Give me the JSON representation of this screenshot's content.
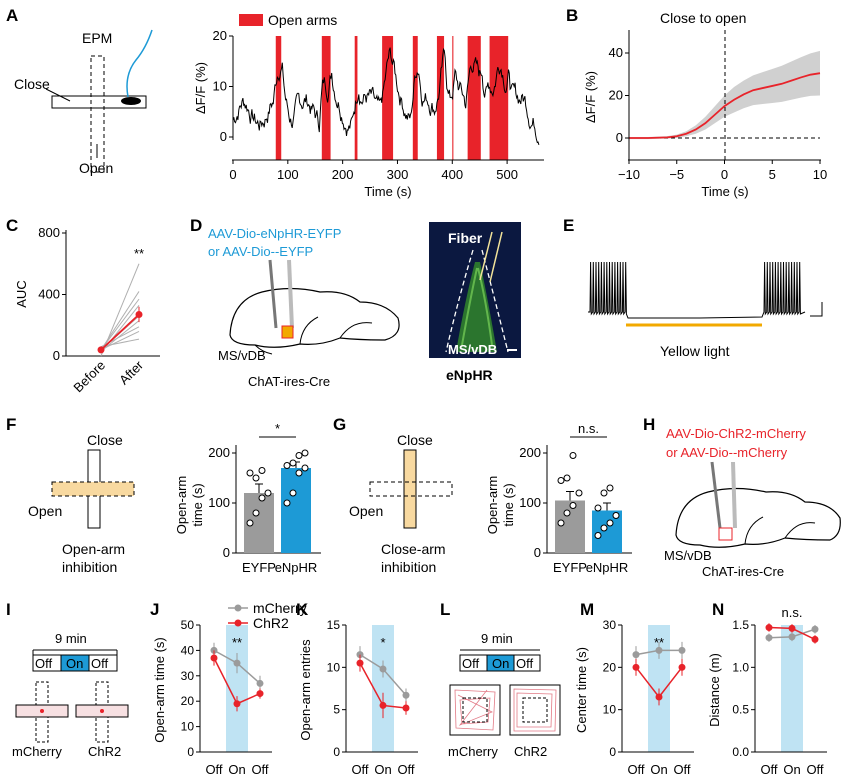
{
  "panels": {
    "A": "A",
    "B": "B",
    "C": "C",
    "D": "D",
    "E": "E",
    "F": "F",
    "G": "G",
    "H": "H",
    "I": "I",
    "J": "J",
    "K": "K",
    "L": "L",
    "M": "M",
    "N": "N"
  },
  "labels": {
    "epm": "EPM",
    "close": "Close",
    "open": "Open",
    "open_arms": "Open arms",
    "close_to_open": "Close to open",
    "virus_d1": "AAV-Dio-eNpHR-EYFP",
    "virus_d2": "or AAV-Dio--EYFP",
    "fiber": "Fiber",
    "msvdb": "MS/vDB",
    "chat_cre": "ChAT-ires-Cre",
    "enphr": "eNpHR",
    "yellow_light": "Yellow light",
    "open_arm_inhibition_1": "Open-arm",
    "open_arm_inhibition_2": "inhibition",
    "close_arm_inhibition_1": "Close-arm",
    "close_arm_inhibition_2": "inhibition",
    "virus_h1": "AAV-Dio-ChR2-mCherry",
    "virus_h2": "or AAV-Dio--mCherry",
    "nine_min": "9 min",
    "off": "Off",
    "on": "On",
    "mcherry": "mCherry",
    "chr2": "ChR2"
  },
  "colors": {
    "red": "#e8232a",
    "blue": "#1d9ad6",
    "gray": "#9b9b9b",
    "yellow": "#f2a900",
    "shade": "#bfe3f3",
    "lightyellow": "#f8d9a0"
  },
  "chart_data": [
    {
      "id": "A",
      "type": "line",
      "ylabel": "ΔF/F (%)",
      "xlabel": "Time (s)",
      "legend": "Open arms",
      "xlim": [
        0,
        560
      ],
      "ylim": [
        -5,
        20
      ],
      "xticks": [
        "0",
        "100",
        "200",
        "300",
        "400",
        "500"
      ],
      "yticks": [
        "0",
        "10",
        "20"
      ],
      "shaded_intervals": [
        [
          78,
          88
        ],
        [
          162,
          178
        ],
        [
          222,
          227
        ],
        [
          272,
          292
        ],
        [
          328,
          337
        ],
        [
          372,
          385
        ],
        [
          400,
          402
        ],
        [
          428,
          452
        ],
        [
          468,
          502
        ]
      ]
    },
    {
      "id": "B",
      "type": "line",
      "title": "Close to open",
      "ylabel": "ΔF/F (%)",
      "xlabel": "Time (s)",
      "xlim": [
        -10,
        10
      ],
      "ylim": [
        -3,
        50
      ],
      "xticks": [
        "−10",
        "−5",
        "0",
        "5",
        "10"
      ],
      "yticks": [
        "0",
        "20",
        "40"
      ],
      "x": [
        -10,
        -8,
        -6,
        -5,
        -4,
        -3,
        -2,
        -1,
        0,
        1,
        2,
        3,
        4,
        5,
        6,
        7,
        8,
        9,
        10
      ],
      "y": [
        0,
        0,
        0.3,
        0.8,
        2,
        4,
        7,
        11,
        15,
        18,
        20.5,
        22.5,
        23.5,
        24.5,
        25.5,
        27,
        28.5,
        29.8,
        30.5
      ],
      "sem": [
        0.5,
        0.5,
        0.6,
        0.8,
        1.2,
        2,
        3,
        4,
        5,
        6,
        6.5,
        7,
        7.5,
        8,
        8.5,
        9,
        9.5,
        10,
        10.5
      ]
    },
    {
      "id": "C",
      "type": "line",
      "ylabel": "AUC",
      "xlabel": "",
      "ylim": [
        0,
        800
      ],
      "categories": [
        "Before",
        "After"
      ],
      "yticks": [
        "0",
        "400",
        "800"
      ],
      "individual": [
        [
          0,
          600
        ],
        [
          40,
          420
        ],
        [
          40,
          370
        ],
        [
          20,
          330
        ],
        [
          40,
          260
        ],
        [
          30,
          230
        ],
        [
          60,
          190
        ],
        [
          40,
          160
        ],
        [
          60,
          110
        ]
      ],
      "mean": [
        40,
        270
      ],
      "sem": [
        10,
        50
      ],
      "significance": "**"
    },
    {
      "id": "F",
      "type": "bar",
      "ylabel": "Open-arm time (s)",
      "categories": [
        "EYFP",
        "eNpHR"
      ],
      "values": [
        120,
        170
      ],
      "sem": [
        18,
        12
      ],
      "ylim": [
        0,
        200
      ],
      "yticks": [
        "0",
        "100",
        "200"
      ],
      "significance": "*",
      "points": [
        [
          60,
          80,
          110,
          120,
          160,
          150,
          165
        ],
        [
          100,
          120,
          160,
          170,
          175,
          180,
          195,
          200
        ]
      ]
    },
    {
      "id": "G",
      "type": "bar",
      "ylabel": "Open-arm time (s)",
      "categories": [
        "EYFP",
        "eNpHR"
      ],
      "values": [
        105,
        85
      ],
      "sem": [
        18,
        15
      ],
      "ylim": [
        0,
        200
      ],
      "yticks": [
        "0",
        "100",
        "200"
      ],
      "significance": "n.s.",
      "points": [
        [
          60,
          80,
          95,
          120,
          145,
          150,
          195
        ],
        [
          35,
          50,
          60,
          75,
          90,
          120,
          130
        ]
      ]
    },
    {
      "id": "J",
      "type": "line",
      "ylabel": "Open-arm time (s)",
      "categories": [
        "Off",
        "On",
        "Off"
      ],
      "ylim": [
        0,
        50
      ],
      "yticks": [
        "0",
        "10",
        "20",
        "30",
        "40",
        "50"
      ],
      "significance": "**",
      "series": [
        {
          "name": "mCherry",
          "values": [
            40,
            35,
            27
          ],
          "sem": [
            3,
            4,
            3
          ]
        },
        {
          "name": "ChR2",
          "values": [
            37,
            19,
            23
          ],
          "sem": [
            3,
            3,
            2
          ]
        }
      ]
    },
    {
      "id": "K",
      "type": "line",
      "ylabel": "Open-arm entries",
      "categories": [
        "Off",
        "On",
        "Off"
      ],
      "ylim": [
        0,
        15
      ],
      "yticks": [
        "0",
        "5",
        "10",
        "15"
      ],
      "significance": "*",
      "series": [
        {
          "name": "mCherry",
          "values": [
            11.5,
            9.8,
            6.7
          ],
          "sem": [
            1,
            1,
            0.8
          ]
        },
        {
          "name": "ChR2",
          "values": [
            10.5,
            5.5,
            5.2
          ],
          "sem": [
            1,
            1.5,
            0.8
          ]
        }
      ]
    },
    {
      "id": "M",
      "type": "line",
      "ylabel": "Center time (s)",
      "categories": [
        "Off",
        "On",
        "Off"
      ],
      "ylim": [
        0,
        30
      ],
      "yticks": [
        "0",
        "10",
        "20",
        "30"
      ],
      "significance": "**",
      "series": [
        {
          "name": "mCherry",
          "values": [
            23,
            24,
            24
          ],
          "sem": [
            2,
            2,
            2
          ]
        },
        {
          "name": "ChR2",
          "values": [
            20,
            13,
            20
          ],
          "sem": [
            2,
            2,
            2
          ]
        }
      ]
    },
    {
      "id": "N",
      "type": "line",
      "ylabel": "Distance (m)",
      "categories": [
        "Off",
        "On",
        "Off"
      ],
      "ylim": [
        0,
        1.5
      ],
      "yticks": [
        "0.0",
        "0.5",
        "1.0",
        "1.5"
      ],
      "significance": "n.s.",
      "series": [
        {
          "name": "mCherry",
          "values": [
            1.35,
            1.36,
            1.45
          ],
          "sem": [
            0.05,
            0.05,
            0.05
          ]
        },
        {
          "name": "ChR2",
          "values": [
            1.47,
            1.46,
            1.33
          ],
          "sem": [
            0.05,
            0.05,
            0.05
          ]
        }
      ]
    }
  ]
}
